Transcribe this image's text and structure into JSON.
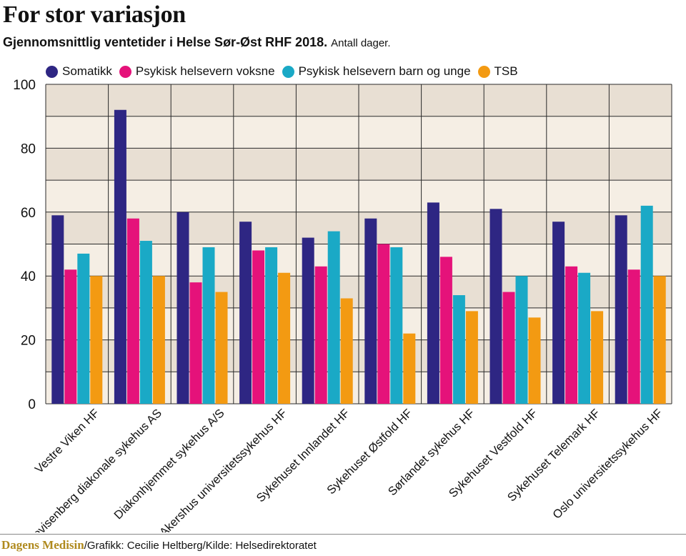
{
  "title": "For stor variasjon",
  "subtitle": "Gjennomsnittlig ventetider i Helse Sør-Øst RHF 2018.",
  "unit_note": "Antall dager.",
  "footer": {
    "brand": "Dagens Medisin",
    "credit": "/Grafikk: Cecilie Heltberg/Kilde: Helsedirektoratet"
  },
  "colors": {
    "somatikk": "#2e2683",
    "voksne": "#e5127a",
    "barn": "#1aa9c6",
    "tsb": "#f39a12",
    "plot_bg": "#f5eee4",
    "band_bg": "#e8dfd3"
  },
  "chart_data": {
    "type": "bar",
    "title": "For stor variasjon",
    "xlabel": "",
    "ylabel": "Antall dager",
    "ylim": [
      0,
      100
    ],
    "yticks": [
      0,
      20,
      40,
      60,
      80,
      100
    ],
    "legend_position": "top-left",
    "categories": [
      "Vestre Viken HF",
      "Lovisenberg diakonale sykehus AS",
      "Diakonhjemmet sykehus A/S",
      "Akershus universitetssykehus HF",
      "Sykehuset Innlandet HF",
      "Sykehuset Østfold HF",
      "Sørlandet sykehus HF",
      "Sykehuset Vestfold HF",
      "Sykehuset Telemark HF",
      "Oslo universitetssykehus HF"
    ],
    "series": [
      {
        "name": "Somatikk",
        "color": "#2e2683",
        "values": [
          59,
          92,
          60,
          57,
          52,
          58,
          63,
          61,
          57,
          59
        ]
      },
      {
        "name": "Psykisk helsevern voksne",
        "color": "#e5127a",
        "values": [
          42,
          58,
          38,
          48,
          43,
          50,
          46,
          35,
          43,
          42
        ]
      },
      {
        "name": "Psykisk helsevern barn og unge",
        "color": "#1aa9c6",
        "values": [
          47,
          51,
          49,
          49,
          54,
          49,
          34,
          40,
          41,
          62
        ]
      },
      {
        "name": "TSB",
        "color": "#f39a12",
        "values": [
          40,
          40,
          35,
          41,
          33,
          22,
          29,
          27,
          29,
          40
        ]
      }
    ]
  }
}
